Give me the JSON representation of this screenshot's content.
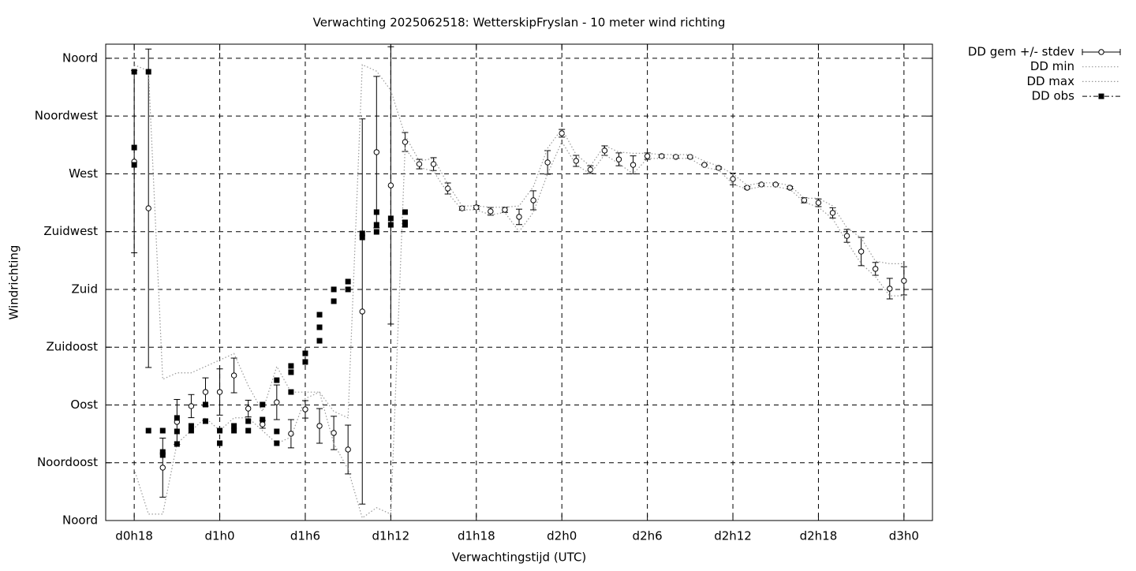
{
  "chart_data": {
    "type": "line",
    "title": "Verwachting 2025062518: WetterskipFryslan - 10 meter wind richting",
    "x_label": "Verwachtingstijd (UTC)",
    "y_label": "Windrichting",
    "xlim": [
      16,
      74
    ],
    "xticks": [
      {
        "value": 18,
        "label": "d0h18"
      },
      {
        "value": 24,
        "label": "d1h0"
      },
      {
        "value": 30,
        "label": "d1h6"
      },
      {
        "value": 36,
        "label": "d1h12"
      },
      {
        "value": 42,
        "label": "d1h18"
      },
      {
        "value": 48,
        "label": "d2h0"
      },
      {
        "value": 54,
        "label": "d2h6"
      },
      {
        "value": 60,
        "label": "d2h12"
      },
      {
        "value": 66,
        "label": "d2h18"
      },
      {
        "value": 72,
        "label": "d3h0"
      }
    ],
    "ylim": [
      0,
      371
    ],
    "yticks": [
      {
        "value": 0,
        "label": "Noord"
      },
      {
        "value": 45,
        "label": "Noordoost"
      },
      {
        "value": 90,
        "label": "Oost"
      },
      {
        "value": 135,
        "label": "Zuidoost"
      },
      {
        "value": 180,
        "label": "Zuid"
      },
      {
        "value": 225,
        "label": "Zuidwest"
      },
      {
        "value": 270,
        "label": "West"
      },
      {
        "value": 315,
        "label": "Noordwest"
      },
      {
        "value": 360,
        "label": "Noord"
      }
    ],
    "grid": true,
    "legend": "outside-right",
    "series": [
      {
        "name": "DD gem +/- stdev",
        "style": "errorbars",
        "color": "#000000",
        "x": [
          18,
          19,
          20,
          21,
          22,
          23,
          24,
          25,
          26,
          27,
          28,
          29,
          30,
          31,
          32,
          33,
          34,
          35,
          36,
          37,
          38,
          39,
          40,
          41,
          42,
          43,
          44,
          45,
          46,
          47,
          48,
          49,
          50,
          51,
          52,
          53,
          54,
          55,
          56,
          57,
          58,
          59,
          60,
          61,
          62,
          63,
          64,
          65,
          66,
          67,
          68,
          69,
          70,
          71,
          72
        ],
        "values": [
          279.5,
          243.2,
          41.2,
          76.8,
          89.1,
          100.1,
          100.1,
          113,
          87.2,
          74.9,
          92.1,
          67.6,
          86.6,
          73.7,
          68.2,
          55.3,
          162.8,
          286.9,
          261,
          294.8,
          277.6,
          277.6,
          258.6,
          243.2,
          243.9,
          240.8,
          242,
          236.5,
          249.4,
          278.9,
          301.6,
          280.1,
          273.3,
          288.1,
          281.3,
          277,
          283.8,
          283.8,
          283.2,
          283.2,
          277,
          274.6,
          266,
          259.2,
          261.7,
          261.7,
          259.2,
          249.4,
          247.5,
          239.6,
          221.7,
          209.5,
          196,
          180.6,
          186.7
        ],
        "errors": [
          71,
          124,
          23,
          17.5,
          9,
          11,
          18,
          13.5,
          6.5,
          3,
          13.5,
          11,
          6.8,
          13.5,
          13,
          19,
          150,
          59,
          108,
          7.4,
          3.7,
          5,
          4.3,
          1.5,
          1.5,
          3,
          2,
          6,
          7.4,
          9.2,
          3,
          4.3,
          3,
          3.7,
          5,
          7,
          2.5,
          1,
          1,
          1,
          0.5,
          1,
          4.5,
          1,
          1,
          0.5,
          1,
          2,
          3,
          4,
          5,
          11,
          5,
          8,
          11
        ]
      },
      {
        "name": "DD min",
        "style": "dotted",
        "color": "#999999",
        "x": [
          18,
          19,
          20,
          21,
          22,
          23,
          24,
          25,
          26,
          27,
          28,
          29,
          30,
          31,
          32,
          33,
          34,
          35,
          36,
          37,
          38,
          39,
          40,
          41,
          42,
          43,
          44,
          45,
          46,
          47,
          48,
          49,
          50,
          51,
          52,
          53,
          54,
          55,
          56,
          57,
          58,
          59,
          60,
          61,
          62,
          63,
          64,
          65,
          66,
          67,
          68,
          69,
          70,
          71,
          72
        ],
        "values": [
          40,
          5,
          5,
          60,
          70,
          80,
          70,
          80,
          80,
          70,
          60,
          65,
          95,
          100,
          60,
          40,
          2,
          10,
          5,
          290,
          275,
          272,
          255,
          242,
          242,
          238,
          240,
          225,
          240,
          270,
          295,
          277,
          270,
          285,
          278,
          270,
          282,
          282,
          282,
          282,
          275,
          273,
          262,
          258,
          260,
          260,
          258,
          248,
          244,
          235,
          217,
          200,
          190,
          175,
          175
        ]
      },
      {
        "name": "DD max",
        "style": "dotted",
        "color": "#999999",
        "x": [
          18,
          19,
          20,
          21,
          22,
          23,
          24,
          25,
          26,
          27,
          28,
          29,
          30,
          31,
          32,
          33,
          34,
          35,
          36,
          37,
          38,
          39,
          40,
          41,
          42,
          43,
          44,
          45,
          46,
          47,
          48,
          49,
          50,
          51,
          52,
          53,
          54,
          55,
          56,
          57,
          58,
          59,
          60,
          61,
          62,
          63,
          64,
          65,
          66,
          67,
          68,
          69,
          70,
          71,
          72
        ],
        "values": [
          355,
          350,
          110,
          115,
          115,
          120,
          125,
          130,
          105,
          85,
          120,
          100,
          100,
          100,
          85,
          80,
          355,
          350,
          335,
          300,
          280,
          282,
          262,
          245,
          245,
          244,
          244,
          245,
          260,
          290,
          305,
          285,
          276,
          292,
          287,
          286,
          286,
          285,
          285,
          285,
          280,
          276,
          270,
          261,
          263,
          263,
          261,
          251,
          251,
          245,
          228,
          220,
          202,
          200,
          200
        ]
      },
      {
        "name": "DD obs",
        "style": "points",
        "color": "#000000",
        "x": [
          18,
          18,
          18,
          19,
          19,
          20,
          20,
          20,
          21,
          21,
          21,
          22,
          22,
          23,
          23,
          24,
          24,
          25,
          25,
          26,
          26,
          27,
          27,
          28,
          28,
          28,
          29,
          29,
          29,
          30,
          30,
          31,
          31,
          31,
          32,
          32,
          33,
          33,
          34,
          34,
          35,
          35,
          35,
          36,
          36,
          37,
          37,
          37
        ],
        "values": [
          349.5,
          290.5,
          277,
          349.5,
          70,
          70,
          53.4,
          51,
          79.9,
          69.4,
          59.6,
          73.7,
          70,
          90.3,
          77.4,
          70,
          60.2,
          73.7,
          70,
          77.4,
          70,
          90.3,
          78.6,
          109.3,
          69.4,
          60.2,
          120.4,
          115.5,
          100.1,
          130.2,
          123.5,
          160.3,
          150.5,
          140,
          180,
          170.8,
          186.1,
          180,
          223.6,
          220.5,
          240.2,
          230.3,
          224.8,
          235.3,
          230.3,
          240.2,
          232.2,
          230.3
        ]
      }
    ]
  }
}
